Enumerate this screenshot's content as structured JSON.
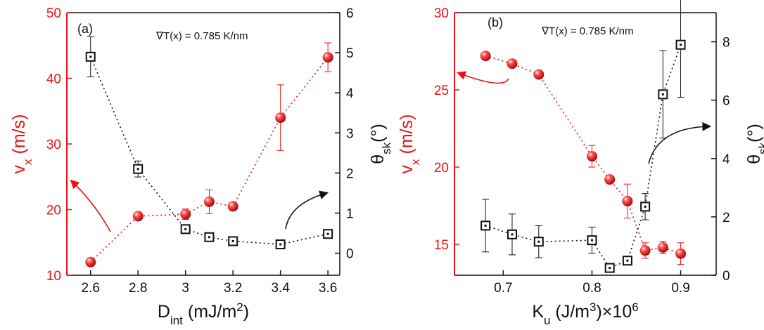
{
  "colors": {
    "red": "#ee1111",
    "black": "#111111"
  },
  "chart_data": [
    {
      "type": "scatter",
      "panel_label": "(a)",
      "annotation": "∇T(x) = 0.785 K/nm",
      "x_label": {
        "main": "D",
        "sub": "int",
        "unit": " (mJ/m",
        "sup": "2",
        "close": ")"
      },
      "yleft_label": {
        "main": "v",
        "sub": "x",
        "unit": " (m/s)"
      },
      "yright_label": {
        "main": "θ",
        "sub": "sk",
        "unit": "(°)"
      },
      "xlim": [
        2.5,
        3.65
      ],
      "yleft_lim": [
        10,
        50
      ],
      "yright_lim": [
        -0.55,
        6
      ],
      "x_ticks": [
        2.6,
        2.8,
        3.0,
        3.2,
        3.4,
        3.6
      ],
      "x_tick_labels": [
        "2.6",
        "2.8",
        "3",
        "3.2",
        "3.4",
        "3.6"
      ],
      "yleft_ticks": [
        10,
        20,
        30,
        40,
        50
      ],
      "yleft_tick_labels": [
        "10",
        "20",
        "30",
        "40",
        "50"
      ],
      "yright_ticks": [
        0,
        1,
        2,
        3,
        4,
        5,
        6
      ],
      "yright_tick_labels": [
        "0",
        "1",
        "2",
        "3",
        "4",
        "5",
        "6"
      ],
      "series": [
        {
          "name": "v_x",
          "axis": "left",
          "marker": "sphere",
          "color": "#ee1111",
          "x": [
            2.6,
            2.8,
            3.0,
            3.1,
            3.2,
            3.4,
            3.6
          ],
          "y": [
            12.0,
            19.0,
            19.3,
            21.2,
            20.5,
            34.0,
            43.2
          ],
          "err": [
            0.0,
            0.0,
            0.8,
            1.8,
            0.0,
            5.0,
            2.2
          ]
        },
        {
          "name": "theta_sk",
          "axis": "right",
          "marker": "square",
          "color": "#111111",
          "x": [
            2.6,
            2.8,
            3.0,
            3.1,
            3.2,
            3.4,
            3.6
          ],
          "y": [
            4.9,
            2.1,
            0.6,
            0.4,
            0.3,
            0.22,
            0.48
          ],
          "err": [
            0.5,
            0.2,
            0.06,
            0.06,
            0.06,
            0.06,
            0.06
          ]
        }
      ]
    },
    {
      "type": "scatter",
      "panel_label": "(b)",
      "annotation": "∇T(x) = 0.785 K/nm",
      "x_label": {
        "main": "K",
        "sub": "u",
        "unit": " (J/m",
        "sup": "3",
        "close": ")×10",
        "sup2": "6"
      },
      "yleft_label": {
        "main": "v",
        "sub": "x",
        "unit": " (m/s)"
      },
      "yright_label": {
        "main": "θ",
        "sub": "sk",
        "unit": "(°)"
      },
      "xlim": [
        0.645,
        0.94
      ],
      "yleft_lim": [
        13,
        30
      ],
      "yright_lim": [
        0,
        9
      ],
      "x_ticks": [
        0.7,
        0.8,
        0.9
      ],
      "x_tick_labels": [
        "0.7",
        "0.8",
        "0.9"
      ],
      "yleft_ticks": [
        15,
        20,
        25,
        30
      ],
      "yleft_tick_labels": [
        "15",
        "20",
        "25",
        "30"
      ],
      "yright_ticks": [
        0,
        2,
        4,
        6,
        8
      ],
      "yright_tick_labels": [
        "0",
        "2",
        "4",
        "6",
        "8"
      ],
      "series": [
        {
          "name": "v_x",
          "axis": "left",
          "marker": "sphere",
          "color": "#ee1111",
          "x": [
            0.68,
            0.71,
            0.74,
            0.8,
            0.82,
            0.84,
            0.86,
            0.88,
            0.9
          ],
          "y": [
            27.2,
            26.7,
            26.0,
            20.7,
            19.2,
            17.8,
            14.6,
            14.8,
            14.4
          ],
          "err": [
            0.0,
            0.0,
            0.0,
            0.7,
            0.0,
            1.1,
            0.5,
            0.4,
            0.7
          ]
        },
        {
          "name": "theta_sk",
          "axis": "right",
          "marker": "square",
          "color": "#111111",
          "x": [
            0.68,
            0.71,
            0.74,
            0.8,
            0.82,
            0.84,
            0.86,
            0.88,
            0.9
          ],
          "y": [
            1.7,
            1.4,
            1.15,
            1.2,
            0.25,
            0.5,
            2.35,
            6.2,
            7.9
          ],
          "err": [
            0.9,
            0.7,
            0.55,
            0.45,
            0.06,
            0.06,
            0.45,
            1.5,
            1.8
          ]
        }
      ]
    }
  ]
}
